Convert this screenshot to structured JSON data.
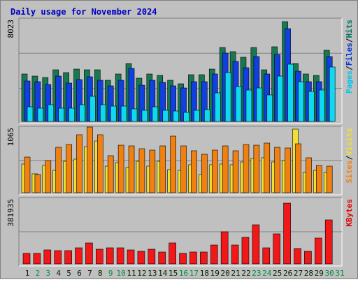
{
  "chart_data": [
    {
      "type": "bar",
      "title": "Daily usage for November 2024",
      "categories": [
        "1",
        "2",
        "3",
        "4",
        "5",
        "6",
        "7",
        "8",
        "9",
        "10",
        "11",
        "12",
        "13",
        "14",
        "15",
        "16",
        "17",
        "18",
        "19",
        "20",
        "21",
        "22",
        "23",
        "24",
        "25",
        "26",
        "27",
        "28",
        "29",
        "30",
        "31"
      ],
      "ymax_label": "8023",
      "ylim": [
        0,
        8023
      ],
      "axis_legend": [
        {
          "text": "Pages",
          "color": "#00c8e8"
        },
        {
          "text": "Files",
          "color": "#0030d8"
        },
        {
          "text": "Hits",
          "color": "#007060"
        }
      ],
      "series": [
        {
          "name": "Hits",
          "color": "#187850",
          "values": [
            3800,
            3600,
            3500,
            4100,
            3900,
            4200,
            4100,
            4100,
            3300,
            3800,
            4600,
            3450,
            3800,
            3650,
            3300,
            3000,
            3750,
            3750,
            4200,
            5900,
            5550,
            5100,
            5900,
            4100,
            5950,
            7950,
            4600,
            3800,
            3650,
            5700,
            0
          ]
        },
        {
          "name": "Files",
          "color": "#1040e0",
          "values": [
            3250,
            3200,
            2950,
            3600,
            3050,
            3350,
            3550,
            3300,
            2850,
            3300,
            4250,
            2900,
            3300,
            3100,
            2850,
            2700,
            3150,
            3200,
            3800,
            5450,
            4800,
            4300,
            5200,
            3800,
            5350,
            7400,
            4000,
            3150,
            3200,
            5200,
            0
          ]
        },
        {
          "name": "Pages",
          "color": "#10d8f0",
          "values": [
            1150,
            1050,
            1350,
            1050,
            1050,
            1350,
            2000,
            1350,
            1200,
            1200,
            1000,
            900,
            1150,
            880,
            850,
            700,
            900,
            950,
            2300,
            3900,
            2800,
            2500,
            2650,
            2100,
            3600,
            4550,
            3200,
            2400,
            2500,
            4350,
            0
          ]
        }
      ]
    },
    {
      "type": "bar",
      "ymax_label": "1065",
      "ylim": [
        0,
        1065
      ],
      "axis_legend": [
        {
          "text": "Sites",
          "color": "#f08010"
        },
        {
          "text": "Visits",
          "color": "#f0e030"
        }
      ],
      "series": [
        {
          "name": "Visits",
          "color": "#f0e030",
          "values": [
            480,
            320,
            460,
            370,
            530,
            560,
            770,
            870,
            440,
            500,
            420,
            530,
            440,
            530,
            390,
            370,
            470,
            300,
            470,
            480,
            470,
            510,
            570,
            580,
            520,
            540,
            1060,
            340,
            380,
            340,
            0
          ]
        },
        {
          "name": "Sites",
          "color": "#f08010",
          "values": [
            600,
            300,
            540,
            760,
            810,
            970,
            1100,
            970,
            620,
            790,
            780,
            740,
            710,
            780,
            950,
            780,
            700,
            640,
            710,
            780,
            700,
            810,
            800,
            830,
            760,
            750,
            820,
            580,
            460,
            450,
            0
          ]
        }
      ]
    },
    {
      "type": "bar",
      "ymax_label": "381935",
      "ylim": [
        0,
        381935
      ],
      "axis_legend": [
        {
          "text": "KBytes",
          "color": "#e00000"
        }
      ],
      "series": [
        {
          "name": "KBytes",
          "color": "#f01818",
          "values": [
            65000,
            62000,
            85000,
            79000,
            80000,
            95000,
            125000,
            87000,
            98000,
            95000,
            82000,
            77000,
            88000,
            73000,
            125000,
            64000,
            71000,
            70000,
            112000,
            195000,
            113000,
            160000,
            234000,
            98000,
            180000,
            364000,
            93000,
            75000,
            155000,
            266000,
            0
          ]
        }
      ]
    }
  ],
  "day_colors": {
    "weekday": "#002000",
    "weekend": "#009040"
  },
  "weekend_days": [
    2,
    3,
    9,
    10,
    16,
    17,
    23,
    24,
    30,
    31
  ],
  "frame_colors": {
    "panel_light": "#ffffff",
    "panel_dark": "#808080",
    "grid": "#808080",
    "title": "#0000c0",
    "axis_label": "#000000"
  }
}
